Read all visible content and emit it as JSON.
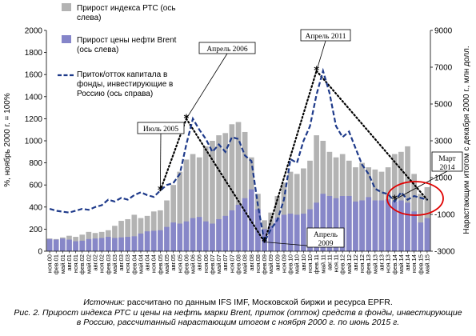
{
  "chart_data": {
    "type": "bar+line",
    "categories": [
      "ноя.00",
      "фев.01",
      "май.01",
      "авг.01",
      "ноя.01",
      "фев.02",
      "май.02",
      "авг.02",
      "ноя.02",
      "фев.03",
      "май.03",
      "авг.03",
      "ноя.03",
      "фев.04",
      "май.04",
      "авг.04",
      "ноя.04",
      "фев.05",
      "май.05",
      "авг.05",
      "ноя.05",
      "фев.06",
      "май.06",
      "авг.06",
      "ноя.06",
      "фев.07",
      "май.07",
      "авг.07",
      "ноя.07",
      "фев.08",
      "май.08",
      "авг.08",
      "ноя.08",
      "фев.09",
      "май.09",
      "авг.09",
      "ноя.09",
      "фев.10",
      "май.10",
      "авг.10",
      "ноя.10",
      "фев.11",
      "май.11",
      "авг.11",
      "ноя.11",
      "фев.12",
      "май.12",
      "авг.12",
      "ноя.12",
      "фев.13",
      "май.13",
      "авг.13",
      "ноя.13",
      "фев.14",
      "май.14",
      "авг.14",
      "ноя.14",
      "фев.15",
      "май.15"
    ],
    "y_left": {
      "label": "%, ноябрь 2000 г. = 100%",
      "min": 0,
      "max": 2000,
      "ticks": [
        0,
        200,
        400,
        600,
        800,
        1000,
        1200,
        1400,
        1600,
        1800,
        2000
      ]
    },
    "y_right": {
      "label": "Нарастающим итогом с декабря 2000 г., млн долл.",
      "min": -3000,
      "max": 9000,
      "ticks": [
        -3000,
        -1000,
        1000,
        3000,
        5000,
        7000,
        9000
      ]
    },
    "series": [
      {
        "name": "Прирост индекса РТС (ось слева)",
        "kind": "bar",
        "axis": "left",
        "color": "#b3b3b3",
        "values": [
          115,
          110,
          125,
          140,
          130,
          150,
          175,
          165,
          175,
          190,
          230,
          275,
          290,
          330,
          300,
          320,
          360,
          370,
          460,
          600,
          720,
          830,
          880,
          850,
          950,
          1000,
          1050,
          1070,
          1150,
          1170,
          1080,
          850,
          520,
          280,
          350,
          500,
          620,
          720,
          700,
          750,
          820,
          1050,
          1000,
          900,
          850,
          880,
          820,
          760,
          800,
          760,
          740,
          720,
          760,
          880,
          900,
          950,
          700,
          520,
          580
        ]
      },
      {
        "name": "Прирост цены нефти Brent (ось слева)",
        "kind": "bar",
        "axis": "left",
        "color": "#8585c9",
        "values": [
          110,
          105,
          115,
          105,
          90,
          95,
          110,
          115,
          120,
          130,
          120,
          125,
          130,
          135,
          160,
          180,
          185,
          190,
          220,
          260,
          250,
          270,
          300,
          310,
          270,
          250,
          290,
          320,
          370,
          420,
          480,
          560,
          380,
          200,
          230,
          300,
          330,
          340,
          330,
          340,
          380,
          440,
          520,
          500,
          480,
          500,
          500,
          450,
          460,
          490,
          460,
          460,
          470,
          450,
          460,
          440,
          360,
          260,
          300
        ]
      },
      {
        "name": "Приток/отток капитала в фонды, инвестирующие в Россию (ось справа)",
        "kind": "line",
        "axis": "right",
        "color": "#1e3a8a",
        "values": [
          -700,
          -800,
          -850,
          -900,
          -800,
          -700,
          -750,
          -600,
          -500,
          -200,
          -300,
          -100,
          -200,
          50,
          200,
          50,
          -50,
          300,
          600,
          700,
          1200,
          2800,
          4200,
          3600,
          3100,
          2400,
          2800,
          2400,
          3200,
          3100,
          2200,
          1900,
          -500,
          -2500,
          -1800,
          -1300,
          -200,
          2000,
          1800,
          3000,
          3800,
          5500,
          6800,
          5600,
          3800,
          3200,
          3500,
          2600,
          1700,
          1200,
          400,
          200,
          100,
          -300,
          200,
          -200,
          0,
          -100,
          -200
        ]
      }
    ],
    "annotations": [
      {
        "text": "Июль 2005",
        "marker": "*"
      },
      {
        "text": "Апрель 2006",
        "marker": "*"
      },
      {
        "text": "Апрель 2009",
        "marker": "*"
      },
      {
        "text": "Апрель 2011",
        "marker": "*"
      },
      {
        "text": "Март 2014",
        "marker": "*"
      }
    ],
    "legend": {
      "placement": "top-center"
    },
    "grid": false
  },
  "caption": {
    "source_label": "Источник:",
    "source_text": "рассчитано по данным IFS IMF, Московской биржи и ресурса EPFR.",
    "figure_line1": "Рис. 2. Прирост индекса РТС и цены на нефть марки Brent, приток (отток) средств в фонды, инвестирующие",
    "figure_line2": "в Россию, рассчитанный нарастающим итогом с ноября 2000 г. по июнь 2015 г."
  }
}
